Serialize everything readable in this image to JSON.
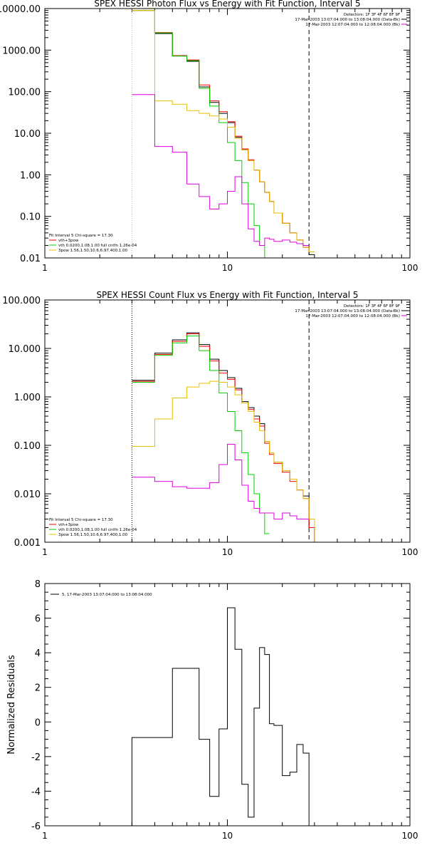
{
  "colors": {
    "black": "#000000",
    "red": "#ff0000",
    "green": "#00d000",
    "gold": "#e8c000",
    "magenta": "#e000e0"
  },
  "chart_data": [
    {
      "type": "line",
      "title": "SPEX HESSI Photon Flux vs Energy with Fit Function, Interval 5",
      "xscale": "log",
      "yscale": "log",
      "xlim": [
        1,
        100
      ],
      "ylim": [
        0.01,
        10000
      ],
      "xticks": [
        {
          "v": 1,
          "t": "1"
        },
        {
          "v": 10,
          "t": "10"
        },
        {
          "v": 100,
          "t": "100"
        }
      ],
      "yticks": [
        {
          "v": 0.01,
          "t": "0.01"
        },
        {
          "v": 0.1,
          "t": "0.10"
        },
        {
          "v": 1,
          "t": "1.00"
        },
        {
          "v": 10,
          "t": "10.00"
        },
        {
          "v": 100,
          "t": "100.00"
        },
        {
          "v": 1000,
          "t": "1000.00"
        },
        {
          "v": 10000,
          "t": "10000.00"
        }
      ],
      "vlines": [
        {
          "x": 3,
          "style": "dotted",
          "color": "gold"
        },
        {
          "x": 28,
          "style": "dashed",
          "color": "black"
        }
      ],
      "legend_tr": [
        {
          "text": "Detectors: 1F 3F 4F 6F 8F 9F",
          "color": ""
        },
        {
          "text": "17-Mar-2003 13:07:04.000 to 13:08:04.000 (Data-Bk)",
          "color": "black"
        },
        {
          "text": "17-Mar-2003 12:07:04.000 to 12:08:04.000 (Bk)",
          "color": "magenta"
        }
      ],
      "legend_bl": [
        {
          "text": "Fit Interval 5   Chi-square = 17.30",
          "color": ""
        },
        {
          "text": "vth+3pow",
          "color": "red"
        },
        {
          "text": "vth 0.0200,1.08,1.00  full cntfn 1.26e-04",
          "color": "green"
        },
        {
          "text": "3pow 1.56,1.50,10.6,6.97,400,1.00",
          "color": "gold"
        }
      ],
      "series": [
        {
          "color": "black",
          "edges": [
            3,
            4,
            5,
            6,
            7,
            8,
            9,
            10,
            11,
            12,
            13,
            14,
            15,
            16,
            17,
            18,
            20,
            22,
            24,
            26,
            28,
            30
          ],
          "values": [
            9000,
            2500,
            720,
            540,
            130,
            55,
            30,
            18,
            8,
            4,
            2.2,
            1.3,
            0.68,
            0.38,
            0.23,
            0.12,
            0.068,
            0.04,
            0.027,
            0.018,
            0.012
          ]
        },
        {
          "color": "red",
          "edges": [
            3,
            4,
            5,
            6,
            7,
            8,
            9,
            10,
            11,
            12,
            13,
            14,
            15,
            16,
            17,
            18,
            20,
            22,
            24,
            26,
            28,
            30
          ],
          "values": [
            9000,
            2650,
            740,
            580,
            145,
            60,
            33,
            19,
            8.5,
            4.2,
            2.3,
            1.3,
            0.68,
            0.38,
            0.23,
            0.12,
            0.068,
            0.04,
            0.027,
            0.018,
            0.014
          ]
        },
        {
          "color": "green",
          "edges": [
            3,
            4,
            5,
            6,
            7,
            8,
            9,
            10,
            11,
            12,
            13,
            14,
            15,
            16
          ],
          "values": [
            9000,
            2600,
            720,
            560,
            120,
            45,
            18,
            6,
            2.2,
            0.65,
            0.2,
            0.06,
            0.02,
            0.01
          ]
        },
        {
          "color": "gold",
          "edges": [
            3,
            4,
            5,
            6,
            7,
            8,
            9,
            10,
            11,
            12,
            13,
            14,
            15,
            16,
            17,
            18,
            20,
            22,
            24,
            26,
            28,
            30
          ],
          "values": [
            9000,
            60,
            50,
            35,
            30,
            26,
            22,
            14,
            7.5,
            4,
            2.2,
            1.3,
            0.68,
            0.38,
            0.23,
            0.12,
            0.068,
            0.04,
            0.027,
            0.018,
            0.014
          ]
        },
        {
          "color": "magenta",
          "edges": [
            3,
            4,
            5,
            6,
            7,
            8,
            9,
            10,
            11,
            12,
            13,
            14,
            15,
            16,
            17,
            18,
            20,
            22,
            24,
            26,
            28
          ],
          "values": [
            85,
            4.8,
            3.5,
            0.6,
            0.3,
            0.15,
            0.2,
            0.4,
            0.9,
            0.2,
            0.05,
            0.025,
            0.02,
            0.03,
            0.028,
            0.025,
            0.027,
            0.024,
            0.022,
            0.02
          ]
        }
      ]
    },
    {
      "type": "line",
      "title": "SPEX HESSI Count Flux vs Energy with Fit Function, Interval 5",
      "xscale": "log",
      "yscale": "log",
      "xlim": [
        1,
        100
      ],
      "ylim": [
        0.001,
        100
      ],
      "xticks": [
        {
          "v": 1,
          "t": "1"
        },
        {
          "v": 10,
          "t": "10"
        },
        {
          "v": 100,
          "t": "100"
        }
      ],
      "yticks": [
        {
          "v": 0.001,
          "t": "0.001"
        },
        {
          "v": 0.01,
          "t": "0.010"
        },
        {
          "v": 0.1,
          "t": "0.100"
        },
        {
          "v": 1,
          "t": "1.000"
        },
        {
          "v": 10,
          "t": "10.000"
        },
        {
          "v": 100,
          "t": "100.000"
        }
      ],
      "vlines": [
        {
          "x": 3,
          "style": "dotted",
          "color": "black"
        },
        {
          "x": 28,
          "style": "dashed",
          "color": "black"
        }
      ],
      "legend_tr": [
        {
          "text": "Detectors: 1F 3F 4F 6F 8F 9F",
          "color": ""
        },
        {
          "text": "17-Mar-2003 13:07:04.000 to 13:08:04.000 (Data-Bk)",
          "color": "black"
        },
        {
          "text": "17-Mar-2003 12:07:04.000 to 12:08:04.000 (Bk)",
          "color": "magenta"
        }
      ],
      "legend_bl": [
        {
          "text": "Fit Interval 5   Chi-square = 17.30",
          "color": ""
        },
        {
          "text": "vth+3pow",
          "color": "red"
        },
        {
          "text": "vth 0.0200,1.08,1.00  full cntfn 1.26e-04",
          "color": "green"
        },
        {
          "text": "3pow 1.56,1.50,10.6,6.97,400,1.00",
          "color": "gold"
        }
      ],
      "series": [
        {
          "color": "black",
          "edges": [
            3,
            4,
            5,
            6,
            7,
            8,
            9,
            10,
            11,
            12,
            13,
            14,
            15,
            16,
            17,
            18,
            20,
            22,
            24,
            26,
            28,
            30,
            33
          ],
          "values": [
            2.2,
            8,
            15,
            21,
            12,
            6,
            3.5,
            2.5,
            1.5,
            0.8,
            0.6,
            0.4,
            0.28,
            0.12,
            0.07,
            0.045,
            0.03,
            0.02,
            0.012,
            0.009,
            0.002,
            0.001
          ]
        },
        {
          "color": "red",
          "edges": [
            3,
            4,
            5,
            6,
            7,
            8,
            9,
            10,
            11,
            12,
            13,
            14,
            15,
            16,
            17,
            18,
            20,
            22,
            24,
            26,
            28,
            30,
            33
          ],
          "values": [
            2.1,
            7.5,
            14,
            20,
            11,
            5.5,
            3.1,
            2.3,
            1.4,
            0.75,
            0.55,
            0.35,
            0.25,
            0.11,
            0.065,
            0.042,
            0.028,
            0.018,
            0.012,
            0.008,
            0.002,
            0.001
          ]
        },
        {
          "color": "green",
          "edges": [
            3,
            4,
            5,
            6,
            7,
            8,
            9,
            10,
            11,
            12,
            13,
            14,
            15,
            16,
            17
          ],
          "values": [
            2,
            7.2,
            13,
            18,
            9,
            3.5,
            1.2,
            0.5,
            0.2,
            0.07,
            0.025,
            0.01,
            0.004,
            0.0015
          ]
        },
        {
          "color": "gold",
          "edges": [
            3,
            4,
            5,
            6,
            7,
            8,
            9,
            10,
            11,
            12,
            13,
            14,
            15,
            16,
            17,
            18,
            20,
            22,
            24,
            26,
            28,
            30,
            33
          ],
          "values": [
            0.095,
            0.35,
            0.95,
            1.6,
            1.9,
            2.1,
            2.0,
            1.6,
            1.1,
            0.75,
            0.5,
            0.3,
            0.2,
            0.12,
            0.07,
            0.045,
            0.03,
            0.02,
            0.012,
            0.008,
            0.003,
            0.001
          ]
        },
        {
          "color": "magenta",
          "edges": [
            3,
            4,
            5,
            6,
            7,
            8,
            9,
            10,
            11,
            12,
            13,
            14,
            15,
            16,
            17,
            18,
            20,
            22,
            24,
            26,
            28
          ],
          "values": [
            0.022,
            0.018,
            0.014,
            0.013,
            0.013,
            0.017,
            0.04,
            0.105,
            0.05,
            0.015,
            0.007,
            0.005,
            0.004,
            0.004,
            0.004,
            0.003,
            0.004,
            0.0035,
            0.003,
            0.003
          ]
        }
      ]
    },
    {
      "type": "line",
      "title": "",
      "xscale": "log",
      "yscale": "linear",
      "xlim": [
        1,
        100
      ],
      "ylim": [
        -6,
        8
      ],
      "ylabel": "Normalized Residuals",
      "xticks": [
        {
          "v": 1,
          "t": "1"
        },
        {
          "v": 10,
          "t": "10"
        },
        {
          "v": 100,
          "t": "100"
        }
      ],
      "yticks": [
        {
          "v": -6,
          "t": "-6"
        },
        {
          "v": -4,
          "t": "-4"
        },
        {
          "v": -2,
          "t": "-2"
        },
        {
          "v": 0,
          "t": "0"
        },
        {
          "v": 2,
          "t": "2"
        },
        {
          "v": 4,
          "t": "4"
        },
        {
          "v": 6,
          "t": "6"
        },
        {
          "v": 8,
          "t": "8"
        }
      ],
      "vlines": [],
      "legend_tl": [
        {
          "text": "5, 17-Mar-2003 13:07:04.000 to 13:08:04.000",
          "color": "black"
        }
      ],
      "legend_tr": [],
      "legend_bl": [],
      "series": [
        {
          "color": "black",
          "edges": [
            3,
            4,
            5,
            6,
            7,
            8,
            9,
            10,
            11,
            12,
            13,
            14,
            15,
            16,
            17,
            18,
            20,
            22,
            24,
            26,
            28
          ],
          "values": [
            -0.9,
            -0.9,
            3.1,
            3.1,
            -1.0,
            -4.3,
            -0.4,
            6.6,
            4.2,
            -3.6,
            -5.5,
            0.8,
            4.3,
            3.9,
            -0.1,
            -0.2,
            -3.1,
            -2.9,
            -1.3,
            -1.8
          ],
          "start_from_min": true,
          "end_to_min": true
        }
      ]
    }
  ]
}
